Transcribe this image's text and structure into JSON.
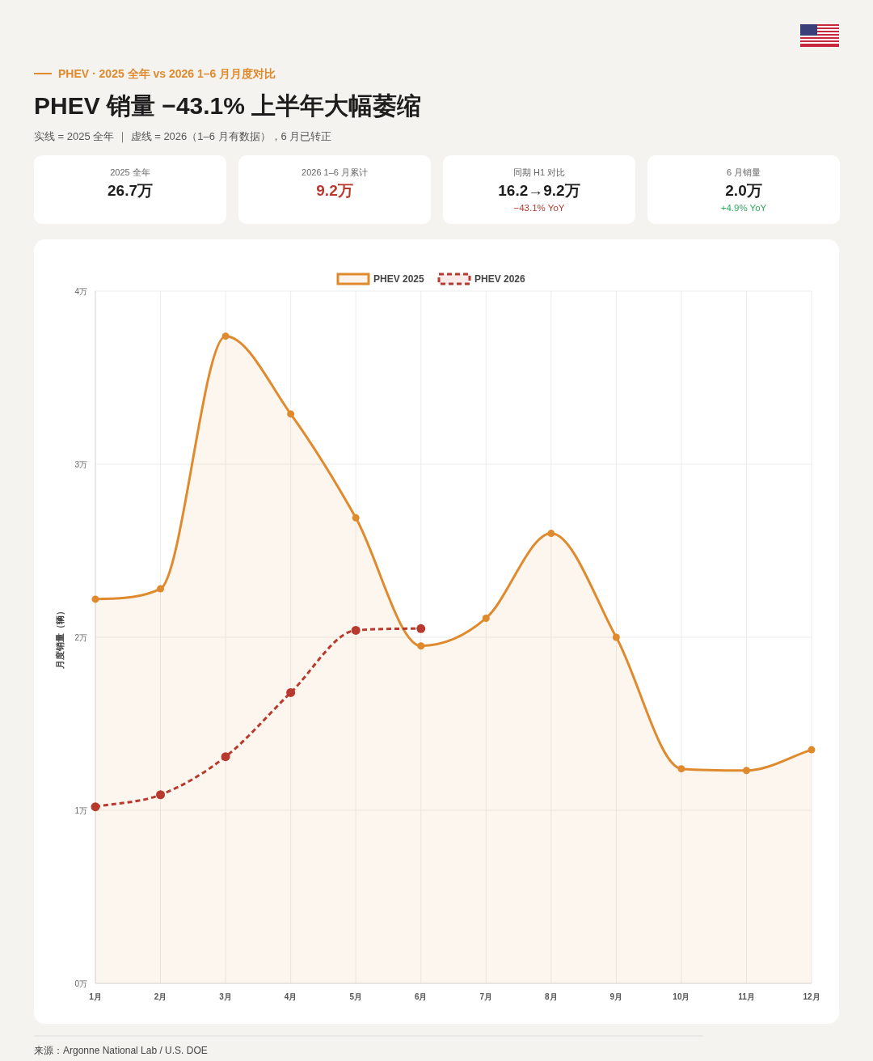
{
  "chart_data": {
    "type": "line",
    "title": "PHEV 销量 −43.1% 上半年大幅萎缩",
    "subtitle": "实线 = 2025 全年 ｜ 虚线 = 2026（1–6 月有数据），6 月已转正",
    "ylabel": "月度销量（辆）",
    "categories": [
      "1月",
      "2月",
      "3月",
      "4月",
      "5月",
      "6月",
      "7月",
      "8月",
      "9月",
      "10月",
      "11月",
      "12月"
    ],
    "series": [
      {
        "name": "PHEV 2025",
        "type": "area",
        "color": "#e08a2e",
        "line_style": "solid",
        "values": [
          2.22,
          2.28,
          3.74,
          3.29,
          2.69,
          1.95,
          2.11,
          2.6,
          2.0,
          1.24,
          1.23,
          1.35
        ]
      },
      {
        "name": "PHEV 2026",
        "type": "line",
        "color": "#b83a2e",
        "line_style": "dashed",
        "values": [
          1.02,
          1.09,
          1.31,
          1.68,
          2.04,
          2.05,
          null,
          null,
          null,
          null,
          null,
          null
        ]
      }
    ],
    "ylim": [
      0,
      4
    ],
    "yticks": [
      {
        "value": 0,
        "label": "0万"
      },
      {
        "value": 1,
        "label": "1万"
      },
      {
        "value": 2,
        "label": "2万"
      },
      {
        "value": 3,
        "label": "3万"
      },
      {
        "value": 4,
        "label": "4万"
      }
    ],
    "grid": true,
    "legend": "top",
    "marker": "circle",
    "annotations": [
      "PHEV · 2025 全年 vs 2026 1–6 月月度对比",
      "2025 全年",
      "26.7万",
      "2026 1–6 月累计",
      "9.2万",
      "同期 H1 对比",
      "16.2→9.2万",
      "−43.1% YoY",
      "6 月销量",
      "2.0万",
      "+4.9% YoY",
      "来源：Argonne National Lab / U.S. DOE"
    ]
  }
}
